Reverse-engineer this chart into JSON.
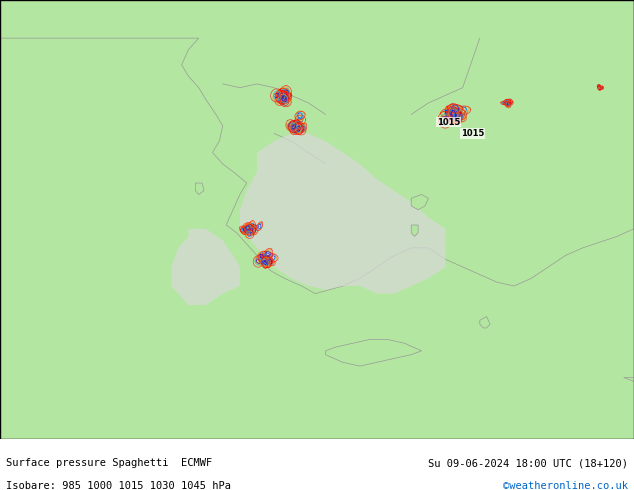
{
  "title_left": "Surface pressure Spaghetti  ECMWF",
  "title_right": "Su 09-06-2024 18:00 UTC (18+120)",
  "isobar_label": "Isobare: 985 1000 1015 1030 1045 hPa",
  "credit": "©weatheronline.co.uk",
  "bg_map_color": "#b3e6a0",
  "bg_outer_color": "#d9d9d9",
  "border_color": "#999999",
  "text_color": "#000000",
  "credit_color": "#0066cc",
  "footer_bg": "#e8e8e8",
  "isobar_colors": {
    "985": "#0000ff",
    "1000": "#00aaff",
    "1015": "#ff8800",
    "1030": "#ff0000",
    "1045": "#aa00aa"
  },
  "map_xlim": [
    19.0,
    30.0
  ],
  "map_ylim": [
    34.5,
    43.0
  ],
  "contour_centers": [
    {
      "lon": 22.5,
      "lat": 42.0,
      "pressure": 985,
      "spread": 0.4
    },
    {
      "lon": 22.8,
      "lat": 41.4,
      "pressure": 985,
      "spread": 0.5
    },
    {
      "lon": 23.5,
      "lat": 40.8,
      "pressure": 985,
      "spread": 0.3
    },
    {
      "lon": 26.5,
      "lat": 41.8,
      "pressure": 985,
      "spread": 0.6
    },
    {
      "lon": 27.2,
      "lat": 41.2,
      "pressure": 985,
      "spread": 0.5
    },
    {
      "lon": 21.5,
      "lat": 38.5,
      "pressure": 985,
      "spread": 0.3
    },
    {
      "lon": 21.8,
      "lat": 37.8,
      "pressure": 985,
      "spread": 0.4
    },
    {
      "lon": 24.5,
      "lat": 37.2,
      "pressure": 985,
      "spread": 0.3
    }
  ],
  "label_positions": [
    {
      "lon": 27.1,
      "lat": 41.3,
      "text": "1015"
    },
    {
      "lon": 27.8,
      "lat": 41.0,
      "text": "1015"
    }
  ]
}
